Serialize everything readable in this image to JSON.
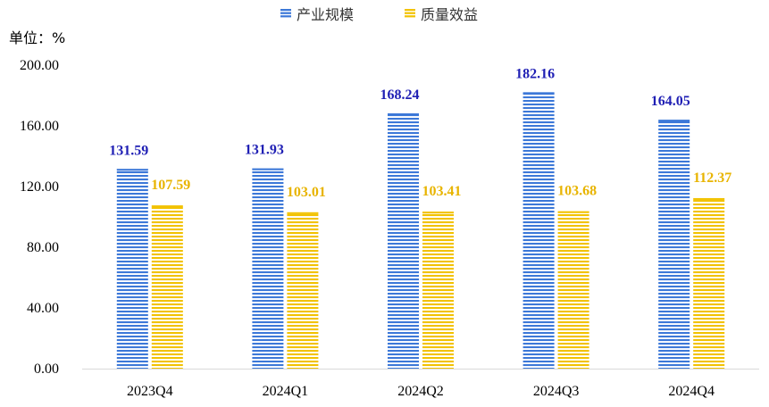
{
  "chart_data": {
    "type": "bar",
    "unit_label": "单位：%",
    "categories": [
      "2023Q4",
      "2024Q1",
      "2024Q2",
      "2024Q3",
      "2024Q4"
    ],
    "series": [
      {
        "name": "产业规模",
        "values": [
          131.59,
          131.93,
          168.24,
          182.16,
          164.05
        ],
        "labels": [
          "131.59",
          "131.93",
          "168.24",
          "182.16",
          "164.05"
        ],
        "color": "#3C78D8",
        "label_color": "#1F1FB4"
      },
      {
        "name": "质量效益",
        "values": [
          107.59,
          103.01,
          103.41,
          103.68,
          112.37
        ],
        "labels": [
          "107.59",
          "103.01",
          "103.41",
          "103.68",
          "112.37"
        ],
        "color": "#F2C200",
        "label_color": "#E8B400"
      }
    ],
    "ylim": [
      0,
      200
    ],
    "yticks": [
      "0.00",
      "40.00",
      "80.00",
      "120.00",
      "160.00",
      "200.00"
    ],
    "grid": false,
    "legend_position": "top-center"
  }
}
